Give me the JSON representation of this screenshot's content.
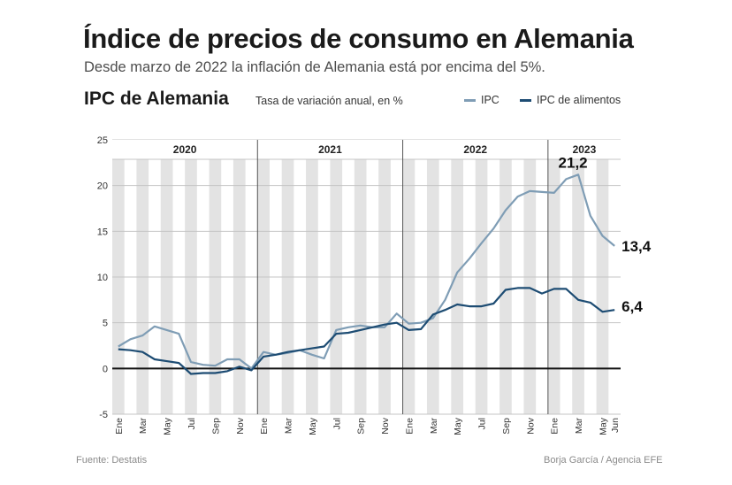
{
  "header": {
    "title": "Índice de precios de consumo en Alemania",
    "subtitle": "Desde marzo de 2022 la inflación de Alemania está por encima del 5%."
  },
  "chart_header": {
    "title": "IPC de Alemania",
    "unit": "Tasa de variación anual, en %"
  },
  "footer": {
    "source": "Fuente: Destatis",
    "credit": "Borja García / Agencia EFE"
  },
  "colors": {
    "ipc": "#7f9db5",
    "food": "#1d4c73",
    "band": "#e3e3e3",
    "grid": "#c4c4c4",
    "zero": "#111111"
  },
  "chart_data": {
    "type": "line",
    "title": "IPC de Alemania",
    "ylabel": "Tasa de variación anual, en %",
    "ylim": [
      -5,
      25
    ],
    "yticks": [
      -5,
      0,
      5,
      10,
      15,
      20,
      25
    ],
    "years": [
      {
        "label": "2020",
        "first": 0,
        "count": 12
      },
      {
        "label": "2021",
        "first": 12,
        "count": 12
      },
      {
        "label": "2022",
        "first": 24,
        "count": 12
      },
      {
        "label": "2023",
        "first": 36,
        "count": 6
      }
    ],
    "x_tick_labels": [
      "Ene",
      "",
      "Mar",
      "",
      "May",
      "",
      "Jul",
      "",
      "Sep",
      "",
      "Nov",
      "",
      "Ene",
      "",
      "Mar",
      "",
      "May",
      "",
      "Jul",
      "",
      "Sep",
      "",
      "Nov",
      "",
      "Ene",
      "",
      "Mar",
      "",
      "May",
      "",
      "Jul",
      "",
      "Sep",
      "",
      "Nov",
      "",
      "Ene",
      "",
      "Mar",
      "",
      "May",
      "Jun"
    ],
    "series": [
      {
        "name": "IPC",
        "values": [
          2.4,
          3.2,
          3.6,
          4.6,
          4.2,
          3.8,
          0.7,
          0.4,
          0.3,
          1.0,
          1.0,
          0.0,
          1.8,
          1.5,
          1.7,
          2.0,
          1.5,
          1.1,
          4.2,
          4.5,
          4.7,
          4.5,
          4.5,
          6.0,
          4.9,
          5.0,
          5.5,
          7.5,
          10.5,
          12.0,
          13.7,
          15.3,
          17.3,
          18.8,
          19.4,
          19.3,
          19.2,
          20.7,
          21.2,
          16.7,
          14.5,
          13.4
        ],
        "end_label": "13,4",
        "peak_label": "21,2",
        "peak_index": 38
      },
      {
        "name": "IPC de alimentos",
        "values": [
          2.1,
          2.0,
          1.8,
          1.0,
          0.8,
          0.6,
          -0.6,
          -0.5,
          -0.5,
          -0.3,
          0.2,
          -0.2,
          1.3,
          1.5,
          1.8,
          2.0,
          2.2,
          2.4,
          3.8,
          3.9,
          4.2,
          4.5,
          4.8,
          5.0,
          4.2,
          4.3,
          5.9,
          6.4,
          7.0,
          6.8,
          6.8,
          7.1,
          8.6,
          8.8,
          8.8,
          8.2,
          8.7,
          8.7,
          7.5,
          7.2,
          6.2,
          6.4
        ],
        "end_label": "6,4"
      }
    ]
  }
}
